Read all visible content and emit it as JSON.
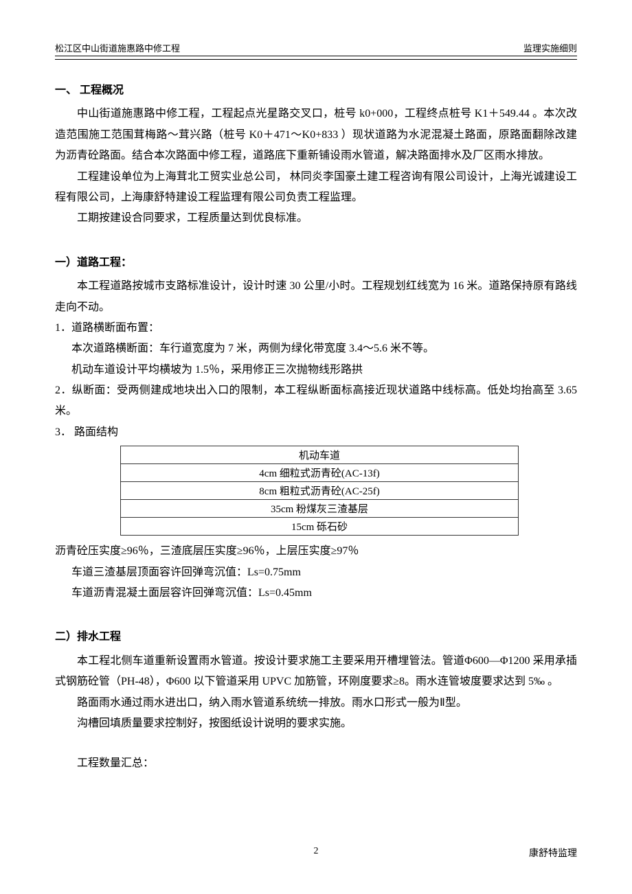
{
  "header": {
    "left": "松江区中山街道施惠路中修工程",
    "right": "监理实施细则"
  },
  "section1": {
    "title": "一、 工程概况",
    "p1": "中山街道施惠路中修工程，工程起点光星路交叉口，桩号 k0+000，工程终点桩号 K1＋549.44 。本次改造范围施工范围茸梅路～茸兴路（桩号 K0＋471～K0+833 ）现状道路为水泥混凝土路面，原路面翻除改建为沥青砼路面。结合本次路面中修工程，道路底下重新铺设雨水管道，解决路面排水及厂区雨水排放。",
    "p2": "工程建设单位为上海茸北工贸实业总公司， 林同炎李国豪土建工程咨询有限公司设计，上海光诚建设工程有限公司，上海康舒特建设工程监理有限公司负责工程监理。",
    "p3": "工期按建设合同要求，工程质量达到优良标准。"
  },
  "road": {
    "title": "一）道路工程：",
    "p1": "本工程道路按城市支路标准设计，设计时速 30 公里/小时。工程规划红线宽为 16 米。道路保持原有路线走向不动。",
    "item1_title": "1．道路横断面布置：",
    "item1_line1": "本次道路横断面：车行道宽度为 7 米，两侧为绿化带宽度 3.4～5.6 米不等。",
    "item1_line2": "机动车道设计平均横坡为 1.5％，采用修正三次抛物线形路拱",
    "item2": "2．纵断面：受两侧建成地块出入口的限制，本工程纵断面标高接近现状道路中线标高。低处均抬高至 3.65 米。",
    "item3_title": "3． 路面结构",
    "table": {
      "header": "机动车道",
      "rows": [
        "4cm 细粒式沥青砼(AC-13f)",
        "8cm 粗粒式沥青砼(AC-25f)",
        "35cm 粉煤灰三渣基层",
        "15cm 砾石砂"
      ]
    },
    "after_table_p1": "沥青砼压实度≥96％，三渣底层压实度≥96％，上层压实度≥97％",
    "after_table_p2": "车道三渣基层顶面容许回弹弯沉值：Ls=0.75mm",
    "after_table_p3": "车道沥青混凝土面层容许回弹弯沉值：Ls=0.45mm"
  },
  "drain": {
    "title": "二）排水工程",
    "p1": "本工程北侧车道重新设置雨水管道。按设计要求施工主要采用开槽埋管法。管道Φ600—Φ1200 采用承插式钢筋砼管（PH-48），Φ600 以下管道采用 UPVC 加筋管，环刚度要求≥8。雨水连管坡度要求达到 5‰ 。",
    "p2": "路面雨水通过雨水进出口，纳入雨水管道系统统一排放。雨水口形式一般为Ⅱ型。",
    "p3": "沟槽回填质量要求控制好，按图纸设计说明的要求实施。",
    "p4": "工程数量汇总："
  },
  "footer": {
    "page": "2",
    "right": "康舒特监理"
  }
}
